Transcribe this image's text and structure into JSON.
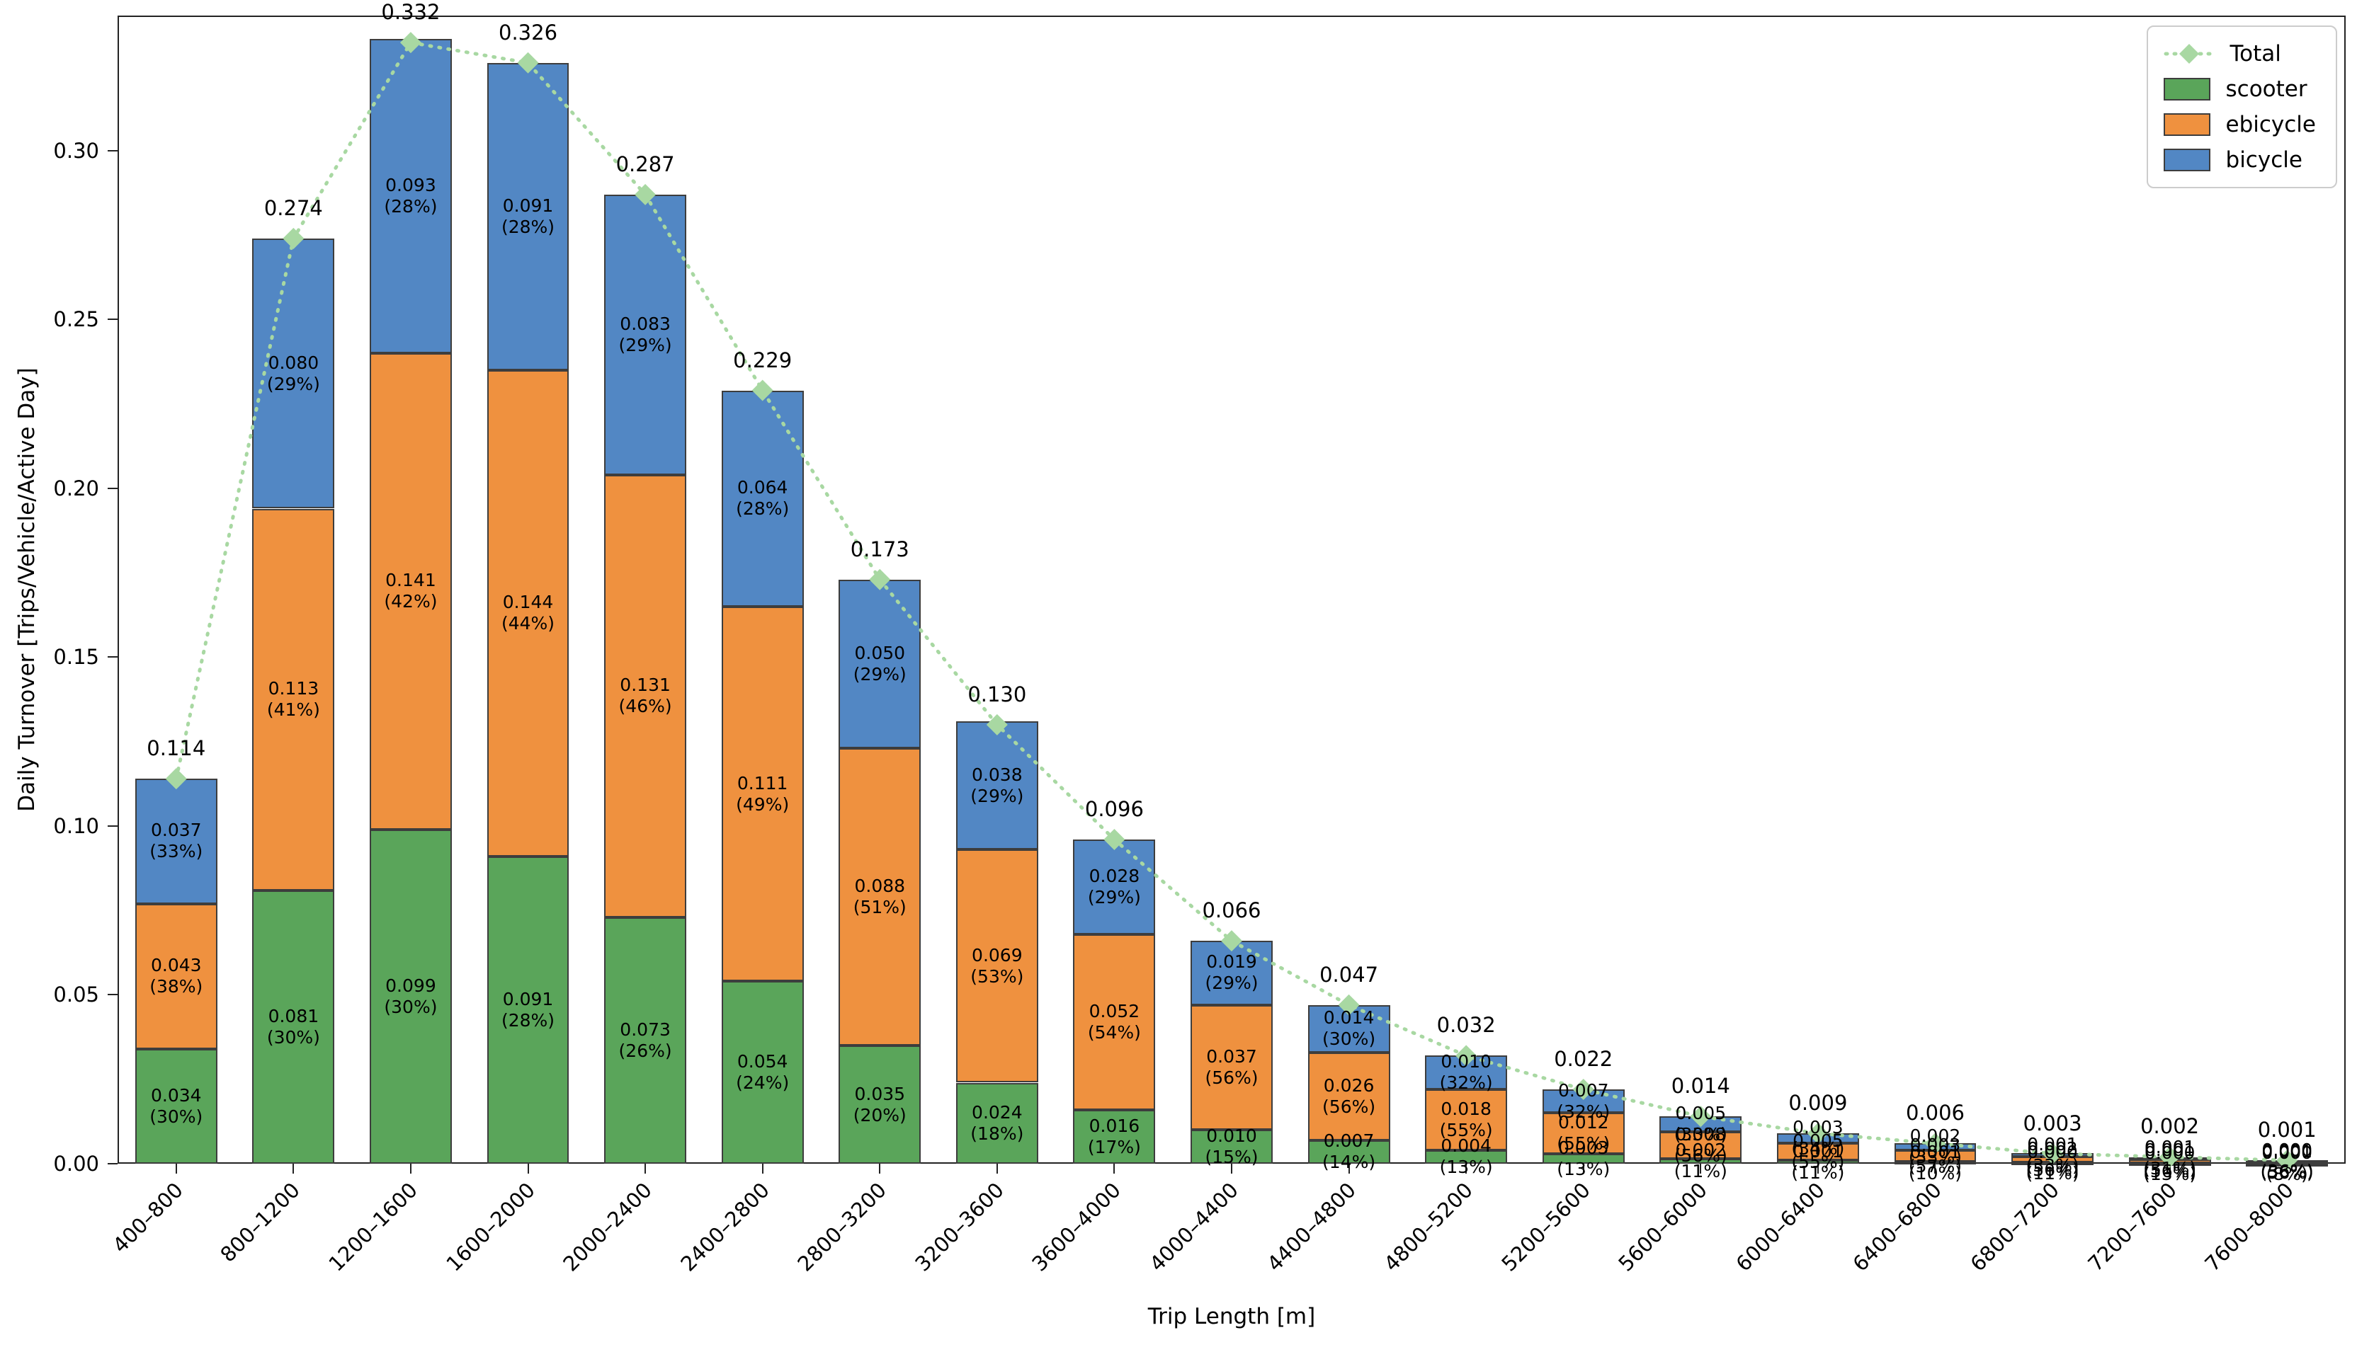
{
  "chart_data": {
    "type": "bar",
    "variant": "stacked-bars-with-total-line",
    "xlabel": "Trip Length [m]",
    "ylabel": "Daily Turnover [Trips/Vehicle/Active Day]",
    "ylim": [
      0,
      0.34
    ],
    "ytick_values": [
      0,
      0.05,
      0.1,
      0.15,
      0.2,
      0.25,
      0.3
    ],
    "ytick_labels": [
      "0.00",
      "0.05",
      "0.10",
      "0.15",
      "0.20",
      "0.25",
      "0.30"
    ],
    "grid": false,
    "legend": {
      "position": "upper-right",
      "entries": [
        "Total",
        "scooter",
        "ebicycle",
        "bicycle"
      ]
    },
    "categories": [
      "400–800",
      "800–1200",
      "1200–1600",
      "1600–2000",
      "2000–2400",
      "2400–2800",
      "2800–3200",
      "3200–3600",
      "3600–4000",
      "4000–4400",
      "4400–4800",
      "4800–5200",
      "5200–5600",
      "5600–6000",
      "6000–6400",
      "6400–6800",
      "6800–7200",
      "7200–7600",
      "7600–8000"
    ],
    "series": [
      {
        "name": "scooter",
        "color": "#5aa55a",
        "values": [
          0.034,
          0.081,
          0.099,
          0.091,
          0.073,
          0.054,
          0.035,
          0.024,
          0.016,
          0.01,
          0.007,
          0.004,
          0.003,
          0.0015,
          0.001,
          0.0006,
          0.0004,
          0.0002,
          0.0001
        ],
        "value_labels": [
          "0.034",
          "0.081",
          "0.099",
          "0.091",
          "0.073",
          "0.054",
          "0.035",
          "0.024",
          "0.016",
          "0.010",
          "0.007",
          "0.004",
          "0.003",
          "0.002",
          "0.001",
          "0.001",
          "0.000",
          "0.000",
          "0.000"
        ],
        "pct_labels": [
          "(30%)",
          "(30%)",
          "(30%)",
          "(28%)",
          "(26%)",
          "(24%)",
          "(20%)",
          "(18%)",
          "(17%)",
          "(15%)",
          "(14%)",
          "(13%)",
          "(13%)",
          "(11%)",
          "(11%)",
          "(10%)",
          "(11%)",
          "(13%)",
          "(8%)"
        ]
      },
      {
        "name": "ebicycle",
        "color": "#ef913f",
        "values": [
          0.043,
          0.113,
          0.141,
          0.144,
          0.131,
          0.111,
          0.088,
          0.069,
          0.052,
          0.037,
          0.026,
          0.018,
          0.012,
          0.008,
          0.005,
          0.0034,
          0.0017,
          0.0011,
          0.0006
        ],
        "value_labels": [
          "0.043",
          "0.113",
          "0.141",
          "0.144",
          "0.131",
          "0.111",
          "0.088",
          "0.069",
          "0.052",
          "0.037",
          "0.026",
          "0.018",
          "0.012",
          "0.008",
          "0.005",
          "0.003",
          "0.002",
          "0.001",
          "0.001"
        ],
        "pct_labels": [
          "(38%)",
          "(41%)",
          "(42%)",
          "(44%)",
          "(46%)",
          "(49%)",
          "(51%)",
          "(53%)",
          "(54%)",
          "(56%)",
          "(56%)",
          "(55%)",
          "(55%)",
          "(56%)",
          "(55%)",
          "(57%)",
          "(56%)",
          "(56%)",
          "(56%)"
        ]
      },
      {
        "name": "bicycle",
        "color": "#5287c4",
        "values": [
          0.037,
          0.08,
          0.093,
          0.091,
          0.083,
          0.064,
          0.05,
          0.038,
          0.028,
          0.019,
          0.014,
          0.01,
          0.007,
          0.0045,
          0.003,
          0.002,
          0.001,
          0.0006,
          0.0004
        ],
        "value_labels": [
          "0.037",
          "0.080",
          "0.093",
          "0.091",
          "0.083",
          "0.064",
          "0.050",
          "0.038",
          "0.028",
          "0.019",
          "0.014",
          "0.010",
          "0.007",
          "0.005",
          "0.003",
          "0.002",
          "0.001",
          "0.001",
          "0.000"
        ],
        "pct_labels": [
          "(33%)",
          "(29%)",
          "(28%)",
          "(28%)",
          "(29%)",
          "(28%)",
          "(29%)",
          "(29%)",
          "(29%)",
          "(29%)",
          "(30%)",
          "(32%)",
          "(32%)",
          "(33%)",
          "(34%)",
          "(33%)",
          "(33%)",
          "(31%)",
          "(36%)"
        ]
      }
    ],
    "total": {
      "name": "Total",
      "color": "#a8d8a2",
      "marker": "diamond",
      "linestyle": "dotted",
      "values": [
        0.114,
        0.274,
        0.332,
        0.326,
        0.287,
        0.229,
        0.173,
        0.13,
        0.096,
        0.066,
        0.047,
        0.032,
        0.022,
        0.014,
        0.009,
        0.006,
        0.003,
        0.002,
        0.001
      ],
      "labels": [
        "0.114",
        "0.274",
        "0.332",
        "0.326",
        "0.287",
        "0.229",
        "0.173",
        "0.130",
        "0.096",
        "0.066",
        "0.047",
        "0.032",
        "0.022",
        "0.014",
        "0.009",
        "0.006",
        "0.003",
        "0.002",
        "0.001"
      ]
    },
    "styles": {
      "bar_edge": "#3d3d3d",
      "axis_color": "#232323",
      "text_color": "#000000",
      "background": "#ffffff"
    }
  }
}
